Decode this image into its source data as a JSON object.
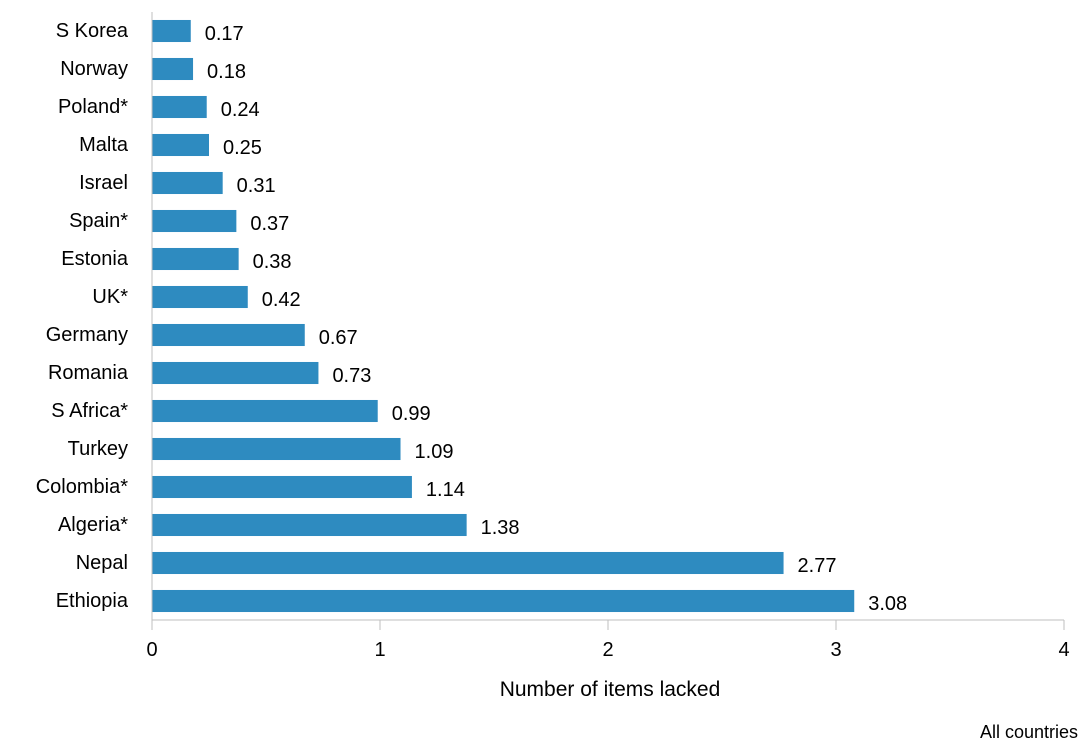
{
  "chart_data": {
    "type": "bar",
    "orientation": "horizontal",
    "categories": [
      "S Korea",
      "Norway",
      "Poland*",
      "Malta",
      "Israel",
      "Spain*",
      "Estonia",
      "UK*",
      "Germany",
      "Romania",
      "S Africa*",
      "Turkey",
      "Colombia*",
      "Algeria*",
      "Nepal",
      "Ethiopia"
    ],
    "values": [
      0.17,
      0.18,
      0.24,
      0.25,
      0.31,
      0.37,
      0.38,
      0.42,
      0.67,
      0.73,
      0.99,
      1.09,
      1.14,
      1.38,
      2.77,
      3.08
    ],
    "value_labels": [
      "0.17",
      "0.18",
      "0.24",
      "0.25",
      "0.31",
      "0.37",
      "0.38",
      "0.42",
      "0.67",
      "0.73",
      "0.99",
      "1.09",
      "1.14",
      "1.38",
      "2.77",
      "3.08"
    ],
    "xlabel": "Number of items lacked",
    "xlim": [
      0,
      4
    ],
    "xticks": [
      0,
      1,
      2,
      3,
      4
    ],
    "grid": false,
    "bar_color": "#2e8bc0",
    "footnote": "All countries"
  }
}
